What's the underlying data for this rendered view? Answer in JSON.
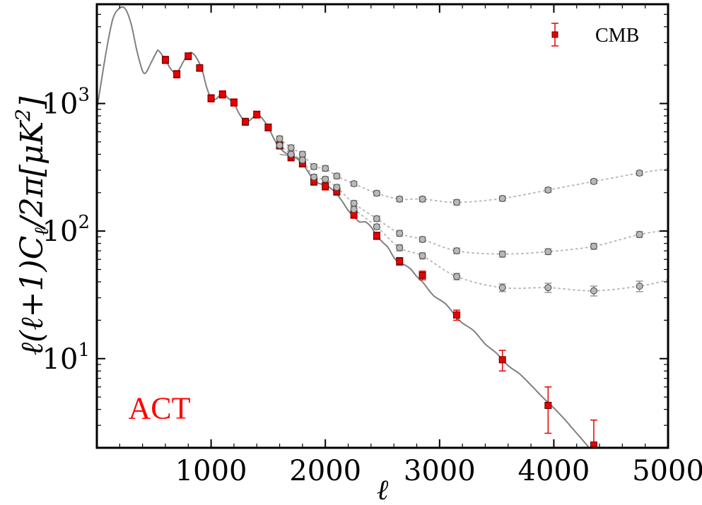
{
  "chart_data": {
    "type": "scatter",
    "xlabel": "ℓ",
    "ylabel": "ℓ(ℓ+1)C",
    "ylabel_sub": "ℓ",
    "ylabel_tail": "/2π[μK",
    "ylabel_sup": "2",
    "ylabel_end": "]",
    "xlim": [
      0,
      5000
    ],
    "ylim": [
      2.0,
      6000
    ],
    "yscale": "log",
    "grid": false,
    "legend_position": "top-right",
    "annotation": {
      "text": "ACT",
      "color": "#ff0000",
      "x": 300,
      "y": 4.5
    },
    "colors": {
      "cmb": "#e80000",
      "foreground": "#b8b8b8",
      "theory": "#808080",
      "dotted": "#bbbbbb",
      "ref": "#909090"
    },
    "x_ticks": [
      {
        "value": 1000,
        "label": "1000"
      },
      {
        "value": 2000,
        "label": "2000"
      },
      {
        "value": 3000,
        "label": "3000"
      },
      {
        "value": 4000,
        "label": "4000"
      },
      {
        "value": 5000,
        "label": "5000"
      }
    ],
    "y_ticks": [
      {
        "value": 10,
        "base": "10",
        "exp": "1"
      },
      {
        "value": 100,
        "base": "10",
        "exp": "2"
      },
      {
        "value": 1000,
        "base": "10",
        "exp": "3"
      }
    ],
    "series": [
      {
        "name": "CMB",
        "marker": "square",
        "points": [
          [
            600,
            2200,
            140
          ],
          [
            700,
            1700,
            110
          ],
          [
            800,
            2350,
            140
          ],
          [
            900,
            1900,
            110
          ],
          [
            1000,
            1100,
            70
          ],
          [
            1100,
            1180,
            75
          ],
          [
            1200,
            1020,
            65
          ],
          [
            1300,
            720,
            45
          ],
          [
            1400,
            820,
            50
          ],
          [
            1500,
            650,
            40
          ],
          [
            1600,
            470,
            30
          ],
          [
            1700,
            380,
            25
          ],
          [
            1800,
            340,
            22
          ],
          [
            1900,
            245,
            16
          ],
          [
            2000,
            225,
            15
          ],
          [
            2100,
            205,
            14
          ],
          [
            2250,
            135,
            9
          ],
          [
            2450,
            92,
            6
          ],
          [
            2650,
            58,
            4
          ],
          [
            2850,
            45,
            3.5
          ],
          [
            3150,
            22,
            2.0
          ],
          [
            3550,
            9.8,
            1.8
          ],
          [
            3950,
            4.3,
            1.7
          ],
          [
            4350,
            2.1,
            1.2
          ]
        ]
      },
      {
        "marker": "circle",
        "curve": "a",
        "points": [
          [
            1600,
            530,
            25
          ],
          [
            1700,
            450,
            22
          ],
          [
            1800,
            400,
            20
          ],
          [
            1900,
            320,
            15
          ],
          [
            2000,
            310,
            15
          ],
          [
            2100,
            270,
            13
          ],
          [
            2250,
            235,
            10
          ],
          [
            2450,
            198,
            9
          ],
          [
            2650,
            178,
            8
          ],
          [
            2850,
            178,
            8
          ],
          [
            3150,
            168,
            8
          ],
          [
            3550,
            180,
            8
          ],
          [
            3950,
            210,
            9
          ],
          [
            4350,
            245,
            10
          ],
          [
            4750,
            285,
            12
          ]
        ]
      },
      {
        "marker": "circle",
        "curve": "b",
        "points": [
          [
            1600,
            470,
            22
          ],
          [
            1700,
            400,
            20
          ],
          [
            1800,
            360,
            18
          ],
          [
            1900,
            265,
            13
          ],
          [
            2000,
            255,
            12
          ],
          [
            2100,
            220,
            11
          ],
          [
            2250,
            165,
            8
          ],
          [
            2450,
            125,
            6
          ],
          [
            2650,
            96,
            5
          ],
          [
            2850,
            86,
            4
          ],
          [
            3150,
            70,
            3.5
          ],
          [
            3550,
            66,
            3.5
          ],
          [
            3950,
            69,
            3.5
          ],
          [
            4350,
            76,
            4
          ],
          [
            4750,
            94,
            5
          ]
        ]
      },
      {
        "marker": "circle",
        "curve": "c",
        "points": [
          [
            2250,
            148,
            7
          ],
          [
            2450,
            108,
            5
          ],
          [
            2650,
            74,
            4
          ],
          [
            2850,
            64,
            3.5
          ],
          [
            3150,
            44,
            2.5
          ],
          [
            3550,
            36,
            2.5
          ],
          [
            3950,
            36,
            3
          ],
          [
            4350,
            34,
            3
          ],
          [
            4750,
            37,
            3.5
          ]
        ]
      }
    ],
    "theory": [
      [
        0,
        900
      ],
      [
        80,
        2500
      ],
      [
        140,
        4600
      ],
      [
        200,
        5600
      ],
      [
        250,
        5500
      ],
      [
        300,
        4200
      ],
      [
        350,
        2600
      ],
      [
        400,
        1800
      ],
      [
        430,
        1750
      ],
      [
        470,
        2050
      ],
      [
        520,
        2500
      ],
      [
        540,
        2600
      ],
      [
        600,
        2200
      ],
      [
        650,
        1850
      ],
      [
        700,
        1750
      ],
      [
        760,
        2150
      ],
      [
        800,
        2450
      ],
      [
        830,
        2500
      ],
      [
        870,
        2300
      ],
      [
        920,
        1850
      ],
      [
        960,
        1350
      ],
      [
        1000,
        1100
      ],
      [
        1040,
        1080
      ],
      [
        1100,
        1200
      ],
      [
        1150,
        1100
      ],
      [
        1200,
        1000
      ],
      [
        1250,
        820
      ],
      [
        1300,
        720
      ],
      [
        1340,
        740
      ],
      [
        1400,
        820
      ],
      [
        1450,
        760
      ],
      [
        1500,
        650
      ],
      [
        1560,
        510
      ],
      [
        1600,
        450
      ],
      [
        1650,
        410
      ],
      [
        1700,
        390
      ],
      [
        1750,
        370
      ],
      [
        1800,
        340
      ],
      [
        1850,
        290
      ],
      [
        1900,
        250
      ],
      [
        1950,
        235
      ],
      [
        2000,
        230
      ],
      [
        2050,
        215
      ],
      [
        2100,
        195
      ],
      [
        2150,
        170
      ],
      [
        2200,
        145
      ],
      [
        2250,
        130
      ],
      [
        2300,
        118
      ],
      [
        2350,
        118
      ],
      [
        2400,
        108
      ],
      [
        2450,
        92
      ],
      [
        2500,
        82
      ],
      [
        2550,
        74
      ],
      [
        2600,
        62
      ],
      [
        2650,
        56
      ],
      [
        2700,
        54
      ],
      [
        2750,
        50
      ],
      [
        2800,
        44
      ],
      [
        2850,
        40
      ],
      [
        2900,
        35
      ],
      [
        2950,
        31
      ],
      [
        3000,
        29
      ],
      [
        3050,
        27
      ],
      [
        3100,
        24
      ],
      [
        3150,
        21
      ],
      [
        3200,
        19
      ],
      [
        3300,
        16.5
      ],
      [
        3400,
        13
      ],
      [
        3500,
        11
      ],
      [
        3600,
        8.8
      ],
      [
        3700,
        7.6
      ],
      [
        3800,
        6.2
      ],
      [
        3900,
        5.0
      ],
      [
        4000,
        4.1
      ],
      [
        4100,
        3.3
      ],
      [
        4200,
        2.6
      ],
      [
        4300,
        2.05
      ],
      [
        4350,
        1.8
      ]
    ],
    "ref_segment": [
      [
        1600,
        400
      ],
      [
        1680,
        390
      ],
      [
        1720,
        380
      ],
      [
        1780,
        370
      ],
      [
        1800,
        360
      ]
    ]
  }
}
